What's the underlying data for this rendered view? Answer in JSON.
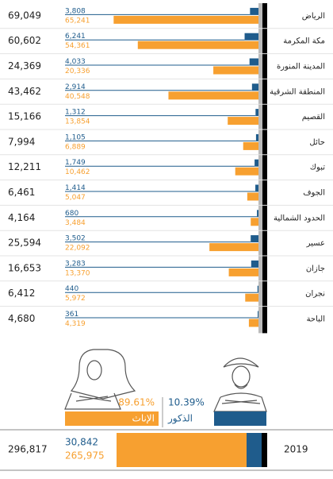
{
  "chart_data": {
    "type": "bar",
    "categories": [
      "الرياض",
      "مكة المكرمة",
      "المدينة المنورة",
      "المنطقة الشرقية",
      "القصيم",
      "حائل",
      "تبوك",
      "الجوف",
      "الحدود الشمالية",
      "عسير",
      "جازان",
      "نجران",
      "الباحة"
    ],
    "totals": [
      69049,
      60602,
      24369,
      43462,
      15166,
      7994,
      12211,
      6461,
      4164,
      25594,
      16653,
      6412,
      4680
    ],
    "total_labels": [
      "69,049",
      "60,602",
      "24,369",
      "43,462",
      "15,166",
      "7,994",
      "12,211",
      "6,461",
      "4,164",
      "25,594",
      "16,653",
      "6,412",
      "4,680"
    ],
    "series": [
      {
        "name": "الذكور",
        "color": "#1f5c8c",
        "values": [
          3808,
          6241,
          4033,
          2914,
          1312,
          1105,
          1749,
          1414,
          680,
          3502,
          3283,
          440,
          361
        ],
        "value_labels": [
          "3,808",
          "6,241",
          "4,033",
          "2,914",
          "1,312",
          "1,105",
          "1,749",
          "1,414",
          "680",
          "3,502",
          "3,283",
          "440",
          "361"
        ]
      },
      {
        "name": "الإناث",
        "color": "#f7a030",
        "values": [
          65241,
          54361,
          20336,
          40548,
          13854,
          6889,
          10462,
          5047,
          3484,
          22092,
          13370,
          5972,
          4319
        ],
        "value_labels": [
          "65,241",
          "54,361",
          "20,336",
          "40,548",
          "13,854",
          "6,889",
          "10,462",
          "5,047",
          "3,484",
          "22,092",
          "13,370",
          "5,972",
          "4,319"
        ]
      }
    ],
    "summary": {
      "year": 2019,
      "total": 296817,
      "total_label": "296,817",
      "male": 30842,
      "male_label": "30,842",
      "female": 265975,
      "female_label": "265,975",
      "male_share": 10.39,
      "male_share_label": "10.39%",
      "female_share": 89.61,
      "female_share_label": "89.61%"
    }
  }
}
